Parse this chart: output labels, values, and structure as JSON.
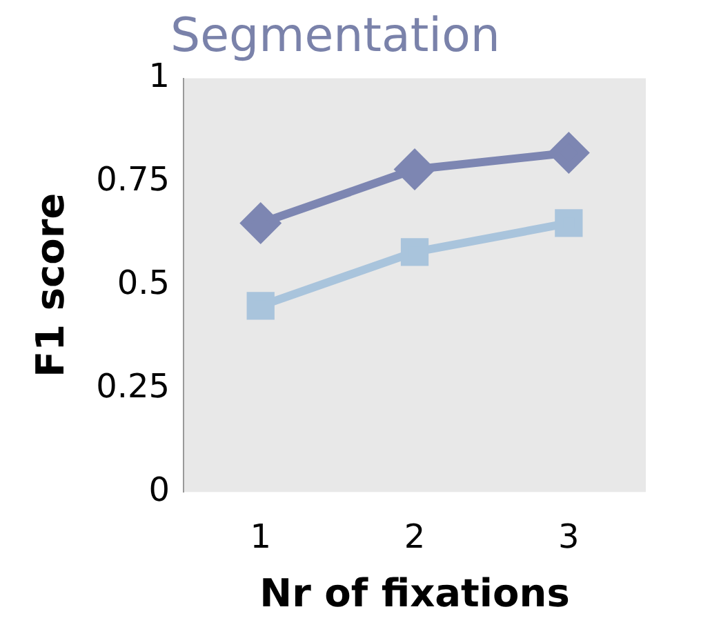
{
  "chart_data": {
    "type": "line",
    "title": "Segmentation",
    "xlabel": "Nr of fixations",
    "ylabel": "F1 score",
    "categories": [
      "1",
      "2",
      "3"
    ],
    "series": [
      {
        "color": "#7d86b2",
        "marker": "diamond",
        "values": [
          0.65,
          0.78,
          0.82
        ]
      },
      {
        "color": "#a9c4dc",
        "marker": "square",
        "values": [
          0.45,
          0.58,
          0.65
        ]
      }
    ],
    "ylim": [
      0,
      1
    ],
    "yticks": [
      0,
      0.25,
      0.5,
      0.75,
      1
    ],
    "grid": false,
    "legend": false
  }
}
